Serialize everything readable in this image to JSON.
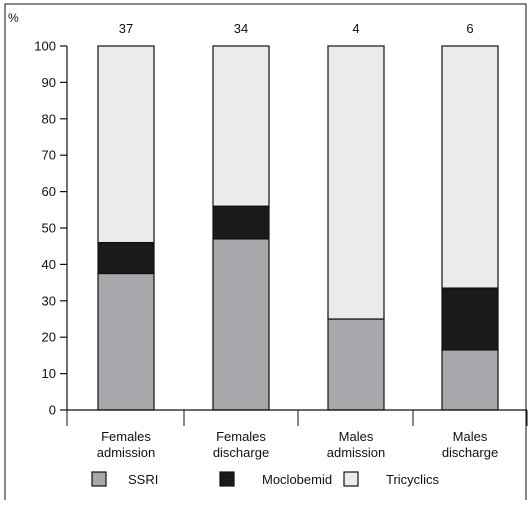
{
  "chart_data": {
    "type": "bar",
    "stacked": true,
    "y_unit_label": "%",
    "ylim": [
      0,
      100
    ],
    "yticks": [
      0,
      10,
      20,
      30,
      40,
      50,
      60,
      70,
      80,
      90,
      100
    ],
    "categories": [
      [
        "Females",
        "admission"
      ],
      [
        "Females",
        "discharge"
      ],
      [
        "Males",
        "admission"
      ],
      [
        "Males",
        "discharge"
      ]
    ],
    "top_labels": [
      "37",
      "34",
      "4",
      "6"
    ],
    "series": [
      {
        "name": "SSRI",
        "color": "#a6a8ab",
        "values": [
          37.5,
          47,
          25,
          16.5
        ]
      },
      {
        "name": "Moclobemid",
        "color": "#1a1a1a",
        "values": [
          8.5,
          9,
          0,
          17
        ]
      },
      {
        "name": "Tricyclics",
        "color": "#ebebeb",
        "values": [
          54,
          44,
          75,
          66.5
        ]
      }
    ],
    "legend_position": "bottom",
    "grid": false
  }
}
